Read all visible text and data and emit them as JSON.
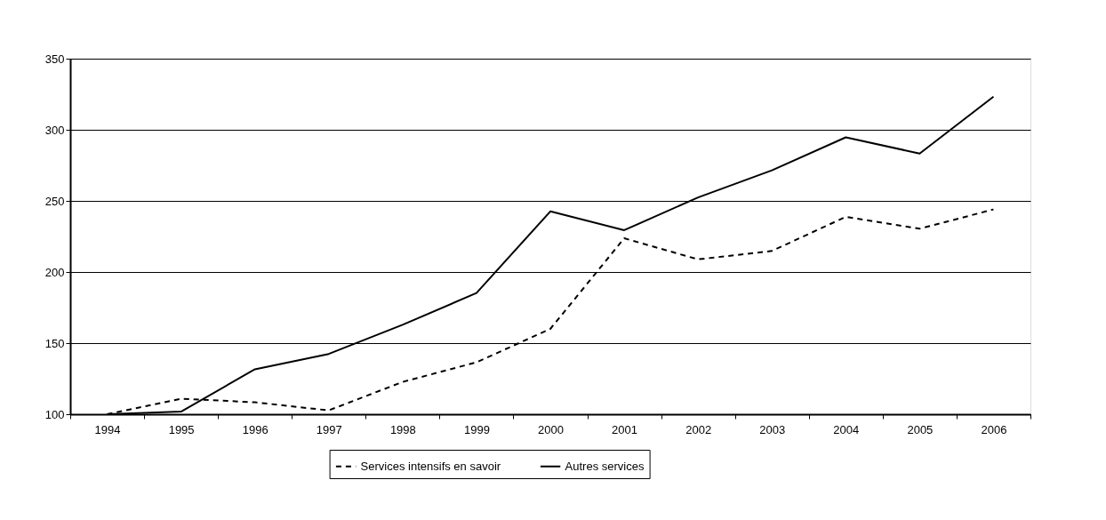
{
  "chart_data": {
    "type": "line",
    "categories": [
      "1994",
      "1995",
      "1996",
      "1997",
      "1998",
      "1999",
      "2000",
      "2001",
      "2002",
      "2003",
      "2004",
      "2005",
      "2006"
    ],
    "series": [
      {
        "name": "Services intensifs en savoir",
        "color": "#000000",
        "line_style": "dashed",
        "values": [
          100,
          110.9,
          108.4,
          102.7,
          122.7,
          136.5,
          160,
          223.7,
          208.9,
          214.8,
          238.8,
          230.4,
          244
        ]
      },
      {
        "name": "Autres services",
        "color": "#000000",
        "line_style": "solid",
        "values": [
          100,
          101.8,
          131.6,
          142.4,
          162.9,
          185.2,
          242.6,
          229.4,
          252.4,
          271.5,
          294.7,
          283.3,
          323.3
        ]
      }
    ],
    "ylim": [
      100,
      350
    ],
    "yticks": [
      100,
      150,
      200,
      250,
      300,
      350
    ],
    "grid": "y",
    "legend": "bottom",
    "marker": "none"
  }
}
